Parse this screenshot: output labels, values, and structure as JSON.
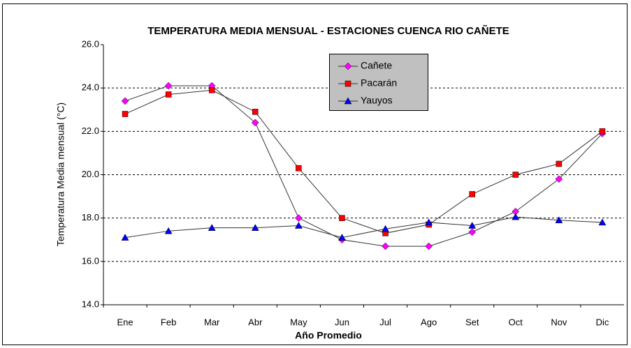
{
  "chart_data": {
    "type": "line",
    "title": "TEMPERATURA MEDIA MENSUAL - ESTACIONES CUENCA RIO CAÑETE",
    "xlabel": "Año Promedio",
    "ylabel": "Temperatura Media mensual  (°C)",
    "categories": [
      "Ene",
      "Feb",
      "Mar",
      "Abr",
      "May",
      "Jun",
      "Jul",
      "Ago",
      "Set",
      "Oct",
      "Nov",
      "Dic"
    ],
    "series": [
      {
        "name": "Cañete",
        "color": "#ff00ff",
        "marker": "diamond",
        "values": [
          23.4,
          24.1,
          24.1,
          22.4,
          18.0,
          17.0,
          16.7,
          16.7,
          17.35,
          18.3,
          19.8,
          21.9
        ]
      },
      {
        "name": "Pacarán",
        "color": "#ff0000",
        "marker": "square",
        "values": [
          22.8,
          23.7,
          23.9,
          22.9,
          20.3,
          18.0,
          17.3,
          17.7,
          19.1,
          20.0,
          20.5,
          22.0
        ]
      },
      {
        "name": "Yauyos",
        "color": "#0000ff",
        "marker": "triangle",
        "values": [
          17.1,
          17.4,
          17.55,
          17.55,
          17.65,
          17.1,
          17.5,
          17.8,
          17.65,
          18.05,
          17.9,
          17.8
        ]
      }
    ],
    "ylim": [
      14,
      26
    ],
    "yticks": [
      {
        "value": 14,
        "label": "14.0"
      },
      {
        "value": 16,
        "label": "16.0"
      },
      {
        "value": 18,
        "label": "18.0"
      },
      {
        "value": 20,
        "label": "20.0"
      },
      {
        "value": 22,
        "label": "22.0"
      },
      {
        "value": 24,
        "label": "24.0"
      },
      {
        "value": 26,
        "label": "26.0"
      }
    ],
    "grid": true,
    "legend": "top"
  }
}
